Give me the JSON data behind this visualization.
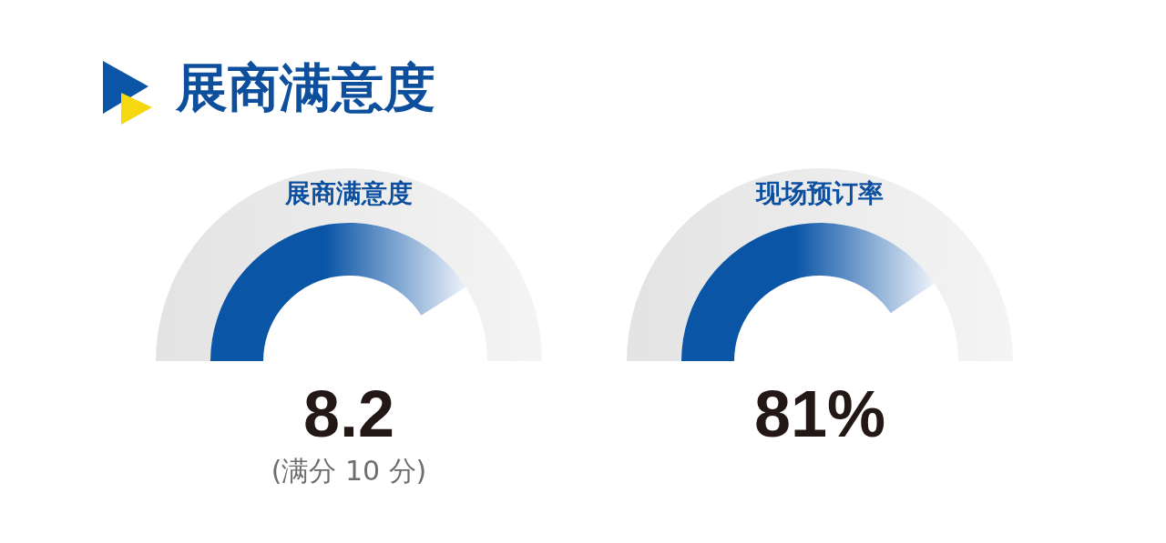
{
  "chart_data": [
    {
      "type": "other",
      "title": "展商满意度"
    },
    {
      "type": "donut",
      "title": "展商满意度",
      "categories": [
        null,
        null
      ],
      "values": [
        82,
        18
      ],
      "colors": [
        "#0b55a6",
        "#f4f4f4"
      ],
      "annotations": [
        "8.2",
        "(满分 10 分)"
      ]
    },
    {
      "type": "donut",
      "title": "现场预订率",
      "categories": [
        null,
        null
      ],
      "values": [
        81,
        19
      ],
      "colors": [
        "#0b55a6",
        "#f4f4f4"
      ],
      "annotations": [
        "81%"
      ]
    }
  ]
}
